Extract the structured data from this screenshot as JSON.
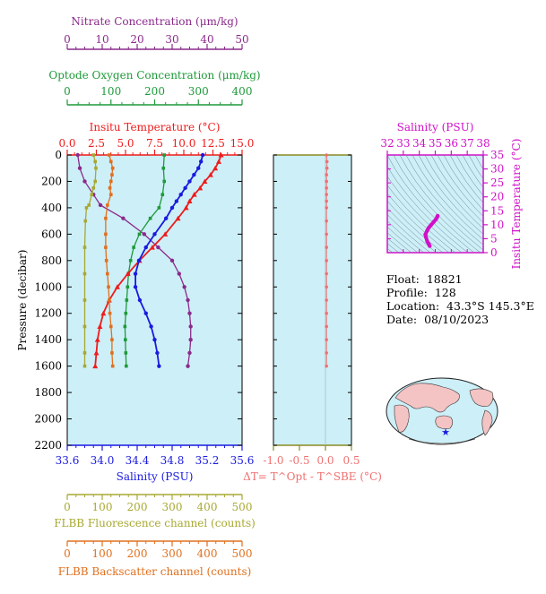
{
  "colors": {
    "plot_bg": "#cdeff7",
    "nitrate": "#8b2a8b",
    "oxygen": "#1e9a3a",
    "temperature": "#ee1c1c",
    "salinity": "#1a1ae0",
    "fluorescence": "#a8a832",
    "backscatter": "#e0701e",
    "delta_t": "#f07070",
    "ts_axis": "#d010c8"
  },
  "info": {
    "float_label": "Float:",
    "float_value": "18821",
    "profile_label": "Profile:",
    "profile_value": "128",
    "location_label": "Location:",
    "location_value": "43.3°S  145.3°E",
    "date_label": "Date:",
    "date_value": "08/10/2023"
  },
  "chart_data": [
    {
      "type": "line",
      "name": "main-profile",
      "ylabel": "Pressure (decibar)",
      "y_ticks": [
        0,
        200,
        400,
        600,
        800,
        1000,
        1200,
        1400,
        1600,
        1800,
        2000,
        2200
      ],
      "ylim": [
        2200,
        0
      ],
      "axes": {
        "nitrate": {
          "label": "Nitrate Concentration (μm/kg)",
          "xlim": [
            0,
            50
          ],
          "ticks": [
            "0",
            "10",
            "20",
            "30",
            "40",
            "50"
          ]
        },
        "oxygen": {
          "label": "Optode Oxygen Concentration (μm/kg)",
          "xlim": [
            0,
            400
          ],
          "ticks": [
            "0",
            "100",
            "200",
            "300",
            "400"
          ]
        },
        "temperature": {
          "label": "Insitu Temperature (°C)",
          "xlim": [
            0,
            15
          ],
          "ticks": [
            "0.0",
            "2.5",
            "5.0",
            "7.5",
            "10.0",
            "12.5",
            "15.0"
          ]
        },
        "salinity": {
          "label": "Salinity (PSU)",
          "xlim": [
            33.6,
            35.6
          ],
          "ticks": [
            "33.6",
            "34.0",
            "34.4",
            "34.8",
            "35.2",
            "35.6"
          ]
        },
        "fluorescence": {
          "label": "FLBB Fluorescence channel (counts)",
          "xlim": [
            0,
            500
          ],
          "ticks": [
            "0",
            "100",
            "200",
            "300",
            "400",
            "500"
          ]
        },
        "backscatter": {
          "label": "FLBB Backscatter channel (counts)",
          "xlim": [
            0,
            500
          ],
          "ticks": [
            "0",
            "100",
            "200",
            "300",
            "400",
            "500"
          ]
        }
      },
      "series": [
        {
          "name": "Nitrate",
          "axis": "nitrate",
          "points": [
            [
              3,
              0
            ],
            [
              3.6,
              100
            ],
            [
              5,
              200
            ],
            [
              7.5,
              300
            ],
            [
              9.5,
              380
            ],
            [
              16,
              480
            ],
            [
              22,
              600
            ],
            [
              26,
              700
            ],
            [
              30,
              800
            ],
            [
              32,
              900
            ],
            [
              33.5,
              1000
            ],
            [
              34.5,
              1100
            ],
            [
              35,
              1200
            ],
            [
              35.3,
              1300
            ],
            [
              35.3,
              1400
            ],
            [
              35,
              1500
            ],
            [
              34.5,
              1600
            ]
          ]
        },
        {
          "name": "Optode Oxygen",
          "axis": "oxygen",
          "points": [
            [
              222,
              0
            ],
            [
              220,
              100
            ],
            [
              222,
              200
            ],
            [
              218,
              300
            ],
            [
              210,
              400
            ],
            [
              190,
              480
            ],
            [
              165,
              600
            ],
            [
              152,
              700
            ],
            [
              145,
              800
            ],
            [
              140,
              900
            ],
            [
              138,
              1000
            ],
            [
              136,
              1100
            ],
            [
              134,
              1200
            ],
            [
              132,
              1300
            ],
            [
              133,
              1400
            ],
            [
              134,
              1500
            ],
            [
              135,
              1600
            ]
          ]
        },
        {
          "name": "Insitu Temperature",
          "axis": "temperature",
          "points": [
            [
              13.2,
              0
            ],
            [
              13,
              50
            ],
            [
              12.7,
              100
            ],
            [
              12.3,
              150
            ],
            [
              11.8,
              200
            ],
            [
              11.4,
              250
            ],
            [
              10.9,
              300
            ],
            [
              10.5,
              350
            ],
            [
              10.2,
              400
            ],
            [
              9.5,
              480
            ],
            [
              8.4,
              600
            ],
            [
              7.3,
              700
            ],
            [
              6.2,
              800
            ],
            [
              5.2,
              900
            ],
            [
              4.3,
              1000
            ],
            [
              3.6,
              1100
            ],
            [
              3.1,
              1200
            ],
            [
              2.8,
              1300
            ],
            [
              2.6,
              1400
            ],
            [
              2.5,
              1500
            ],
            [
              2.4,
              1600
            ]
          ]
        },
        {
          "name": "Salinity",
          "axis": "salinity",
          "points": [
            [
              35.15,
              0
            ],
            [
              35.13,
              50
            ],
            [
              35.1,
              100
            ],
            [
              35.05,
              150
            ],
            [
              35.0,
              200
            ],
            [
              34.95,
              250
            ],
            [
              34.9,
              300
            ],
            [
              34.85,
              350
            ],
            [
              34.8,
              400
            ],
            [
              34.73,
              480
            ],
            [
              34.6,
              600
            ],
            [
              34.5,
              700
            ],
            [
              34.42,
              800
            ],
            [
              34.38,
              900
            ],
            [
              34.38,
              1000
            ],
            [
              34.43,
              1100
            ],
            [
              34.5,
              1200
            ],
            [
              34.56,
              1300
            ],
            [
              34.6,
              1400
            ],
            [
              34.63,
              1500
            ],
            [
              34.65,
              1600
            ]
          ]
        },
        {
          "name": "FLBB Fluorescence",
          "axis": "fluorescence",
          "points": [
            [
              75,
              0
            ],
            [
              80,
              50
            ],
            [
              82,
              100
            ],
            [
              80,
              200
            ],
            [
              75,
              250
            ],
            [
              70,
              300
            ],
            [
              62,
              380
            ],
            [
              55,
              400
            ],
            [
              52,
              500
            ],
            [
              50,
              700
            ],
            [
              50,
              900
            ],
            [
              50,
              1100
            ],
            [
              50,
              1300
            ],
            [
              50,
              1500
            ],
            [
              50,
              1600
            ]
          ]
        },
        {
          "name": "FLBB Backscatter",
          "axis": "backscatter",
          "points": [
            [
              120,
              0
            ],
            [
              125,
              50
            ],
            [
              130,
              100
            ],
            [
              128,
              150
            ],
            [
              125,
              200
            ],
            [
              122,
              250
            ],
            [
              125,
              300
            ],
            [
              115,
              380
            ],
            [
              110,
              480
            ],
            [
              110,
              600
            ],
            [
              110,
              700
            ],
            [
              112,
              800
            ],
            [
              115,
              900
            ],
            [
              118,
              1000
            ],
            [
              120,
              1100
            ],
            [
              122,
              1200
            ],
            [
              125,
              1300
            ],
            [
              128,
              1400
            ],
            [
              128,
              1500
            ],
            [
              130,
              1600
            ]
          ]
        }
      ]
    },
    {
      "type": "scatter",
      "name": "temperature-difference",
      "xlabel": "ΔT= T^Opt - T^SBE (°C)",
      "xlim": [
        -1.0,
        0.5
      ],
      "x_ticks": [
        "-1.0",
        "-0.5",
        "0.0",
        "0.5"
      ],
      "ylim": [
        2200,
        0
      ],
      "series": [
        {
          "name": "ΔT",
          "points": [
            [
              0.02,
              0
            ],
            [
              0.03,
              50
            ],
            [
              0.03,
              100
            ],
            [
              0.02,
              150
            ],
            [
              0.02,
              200
            ],
            [
              0.02,
              250
            ],
            [
              0.02,
              300
            ],
            [
              0.02,
              350
            ],
            [
              0.02,
              400
            ],
            [
              0.02,
              500
            ],
            [
              0.02,
              600
            ],
            [
              0.02,
              700
            ],
            [
              0.02,
              800
            ],
            [
              0.02,
              900
            ],
            [
              0.02,
              1000
            ],
            [
              0.02,
              1100
            ],
            [
              0.02,
              1200
            ],
            [
              0.02,
              1300
            ],
            [
              0.02,
              1400
            ],
            [
              0.02,
              1500
            ],
            [
              0.02,
              1600
            ]
          ]
        }
      ]
    },
    {
      "type": "line",
      "name": "ts-diagram",
      "xlabel": "Salinity (PSU)",
      "ylabel": "Insitu Temperature (°C)",
      "xlim": [
        32,
        38
      ],
      "ylim": [
        0,
        35
      ],
      "x_ticks": [
        "32",
        "33",
        "34",
        "35",
        "36",
        "37",
        "38"
      ],
      "y_ticks": [
        "0",
        "5",
        "10",
        "15",
        "20",
        "25",
        "30",
        "35"
      ],
      "series": [
        {
          "name": "T-S",
          "points": [
            [
              34.65,
              2.4
            ],
            [
              34.6,
              3
            ],
            [
              34.5,
              4
            ],
            [
              34.42,
              5.5
            ],
            [
              34.38,
              6.5
            ],
            [
              34.5,
              8
            ],
            [
              34.6,
              9
            ],
            [
              34.75,
              10
            ],
            [
              34.9,
              11
            ],
            [
              35.05,
              12
            ],
            [
              35.12,
              12.8
            ],
            [
              35.15,
              13.2
            ]
          ]
        }
      ]
    }
  ]
}
